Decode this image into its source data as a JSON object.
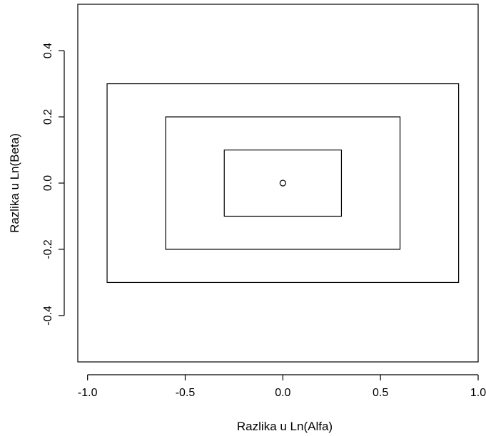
{
  "chart_data": {
    "type": "scatter",
    "title": "",
    "xlabel": "Razlika u Ln(Alfa)",
    "ylabel": "Razlika u Ln(Beta)",
    "xlim": [
      -1.05,
      1.0
    ],
    "ylim": [
      -0.54,
      0.54
    ],
    "x_ticks": [
      -1.0,
      -0.5,
      0.0,
      0.5,
      1.0
    ],
    "x_tick_labels": [
      "-1.0",
      "-0.5",
      "0.0",
      "0.5",
      "1.0"
    ],
    "y_ticks": [
      -0.4,
      -0.2,
      0.0,
      0.2,
      0.4
    ],
    "y_tick_labels": [
      "-0.4",
      "-0.2",
      "0.0",
      "0.2",
      "0.4"
    ],
    "grid": false,
    "points": [
      {
        "x": 0.0,
        "y": 0.0,
        "marker": "open-circle"
      }
    ],
    "rectangles": [
      {
        "x0": -0.3,
        "x1": 0.3,
        "y0": -0.1,
        "y1": 0.1
      },
      {
        "x0": -0.6,
        "x1": 0.6,
        "y0": -0.2,
        "y1": 0.2
      },
      {
        "x0": -0.9,
        "x1": 0.9,
        "y0": -0.3,
        "y1": 0.3
      }
    ],
    "colors": {
      "line": "#000000",
      "background": "#ffffff"
    }
  }
}
